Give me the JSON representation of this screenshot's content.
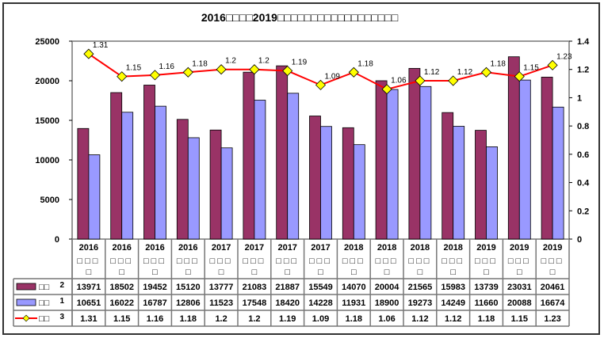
{
  "chart_data": {
    "type": "bar+line",
    "title": "2016□□□□2019□□□□□□□□□□□□□□□□□□",
    "categories": [
      {
        "year": "2016",
        "sub": "□□□",
        "sub2": "□"
      },
      {
        "year": "2016",
        "sub": "□□□",
        "sub2": "□"
      },
      {
        "year": "2016",
        "sub": "□□□",
        "sub2": "□"
      },
      {
        "year": "2016",
        "sub": "□□□",
        "sub2": "□"
      },
      {
        "year": "2017",
        "sub": "□□□",
        "sub2": "□"
      },
      {
        "year": "2017",
        "sub": "□□□",
        "sub2": "□"
      },
      {
        "year": "2017",
        "sub": "□□□",
        "sub2": "□"
      },
      {
        "year": "2017",
        "sub": "□□□",
        "sub2": "□"
      },
      {
        "year": "2018",
        "sub": "□□□",
        "sub2": "□"
      },
      {
        "year": "2018",
        "sub": "□□□",
        "sub2": "□"
      },
      {
        "year": "2018",
        "sub": "□□□",
        "sub2": "□"
      },
      {
        "year": "2018",
        "sub": "□□□",
        "sub2": "□"
      },
      {
        "year": "2019",
        "sub": "□□□",
        "sub2": "□"
      },
      {
        "year": "2019",
        "sub": "□□□",
        "sub2": "□"
      },
      {
        "year": "2019",
        "sub": "□□□",
        "sub2": "□"
      }
    ],
    "series": [
      {
        "name": "□□2",
        "type": "bar",
        "axis": "left",
        "color": "#993366",
        "values": [
          13971,
          18502,
          19452,
          15120,
          13777,
          21083,
          21887,
          15549,
          14070,
          20004,
          21565,
          15983,
          13739,
          23031,
          20461
        ]
      },
      {
        "name": "□□1",
        "type": "bar",
        "axis": "left",
        "color": "#9999FF",
        "values": [
          10651,
          16022,
          16787,
          12806,
          11523,
          17548,
          18420,
          14228,
          11931,
          18900,
          19273,
          14249,
          11660,
          20088,
          16674
        ]
      },
      {
        "name": "□□3",
        "type": "line",
        "axis": "right",
        "color": "#FF0000",
        "marker_color": "#FFFF00",
        "values": [
          1.31,
          1.15,
          1.16,
          1.18,
          1.2,
          1.2,
          1.19,
          1.09,
          1.18,
          1.06,
          1.12,
          1.12,
          1.18,
          1.15,
          1.23
        ]
      }
    ],
    "left_axis": {
      "min": 0,
      "max": 25000,
      "ticks": [
        0,
        5000,
        10000,
        15000,
        20000,
        25000
      ]
    },
    "right_axis": {
      "min": 0,
      "max": 1.4,
      "ticks": [
        "0",
        "0.2",
        "0.4",
        "0.6",
        "0.8",
        "1",
        "1.2",
        "1.4"
      ]
    },
    "legend": "data-table-bottom",
    "grid": false
  }
}
